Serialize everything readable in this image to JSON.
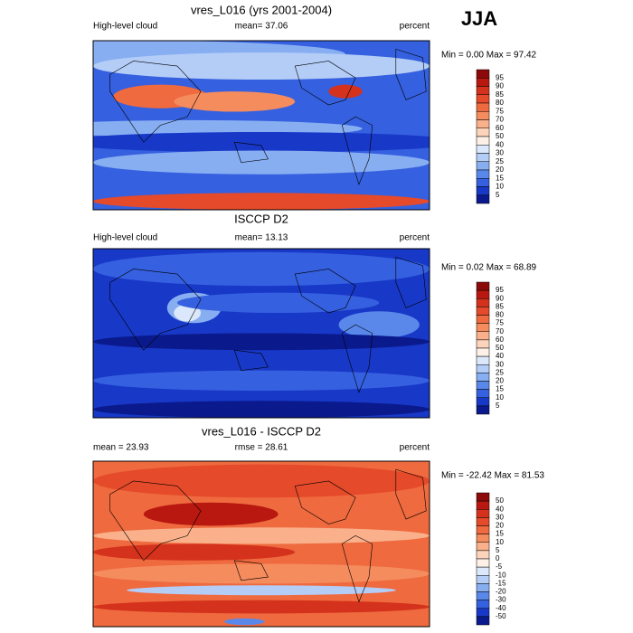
{
  "header": {
    "season": "JJA"
  },
  "panels": [
    {
      "title": "vres_L016 (yrs 2001-2004)",
      "left": "High-level cloud",
      "center": "mean=  37.06",
      "right": "percent",
      "stats": "Min =   0.00 Max =   97.42",
      "levels": [
        "95",
        "90",
        "85",
        "80",
        "75",
        "70",
        "60",
        "50",
        "40",
        "30",
        "25",
        "20",
        "15",
        "10",
        "5"
      ]
    },
    {
      "title": "ISCCP D2",
      "left": "High-level cloud",
      "center": "mean=  13.13",
      "right": "percent",
      "stats": "Min =   0.02 Max =   68.89",
      "levels": [
        "95",
        "90",
        "85",
        "80",
        "75",
        "70",
        "60",
        "50",
        "40",
        "30",
        "25",
        "20",
        "15",
        "10",
        "5"
      ]
    },
    {
      "title": "vres_L016 - ISCCP D2",
      "left": "mean =  23.93",
      "center": "rmse =  28.61",
      "right": "percent",
      "stats": "Min =  -22.42 Max =   81.53",
      "levels": [
        "50",
        "40",
        "30",
        "20",
        "15",
        "10",
        "5",
        "0",
        "-5",
        "-10",
        "-15",
        "-20",
        "-30",
        "-40",
        "-50"
      ]
    }
  ],
  "colorbar_colors": [
    "#8c0a0a",
    "#b8180f",
    "#d4321c",
    "#e54a2a",
    "#ef6a3e",
    "#f58c5e",
    "#f9b08b",
    "#fcd4bb",
    "#fdf0e6",
    "#dbe8fb",
    "#b4cdf7",
    "#88aef2",
    "#5a88ea",
    "#3560df",
    "#1838c8",
    "#0a1a8c"
  ]
}
